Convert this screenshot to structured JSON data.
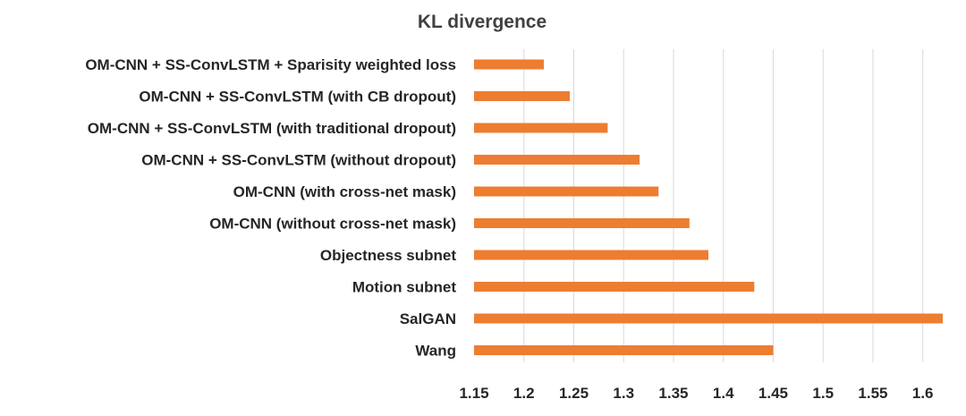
{
  "chart_data": {
    "type": "bar",
    "orientation": "horizontal",
    "title": "KL divergence",
    "xlabel": "",
    "ylabel": "",
    "xlim": [
      1.15,
      1.62
    ],
    "x_ticks": [
      1.15,
      1.2,
      1.25,
      1.3,
      1.35,
      1.4,
      1.45,
      1.5,
      1.55,
      1.6
    ],
    "x_tick_labels": [
      "1.15",
      "1.2",
      "1.25",
      "1.3",
      "1.35",
      "1.4",
      "1.45",
      "1.5",
      "1.55",
      "1.6"
    ],
    "grid": true,
    "legend": "none",
    "bar_color": "#ed7d31",
    "categories": [
      "OM-CNN + SS-ConvLSTM + Sparisity weighted loss",
      "OM-CNN + SS-ConvLSTM (with CB dropout)",
      "OM-CNN + SS-ConvLSTM (with traditional dropout)",
      "OM-CNN + SS-ConvLSTM (without dropout)",
      "OM-CNN (with cross-net mask)",
      "OM-CNN (without cross-net mask)",
      "Objectness subnet",
      "Motion subnet",
      "SalGAN",
      "Wang"
    ],
    "values": [
      1.22,
      1.246,
      1.284,
      1.316,
      1.335,
      1.366,
      1.385,
      1.431,
      1.62,
      1.45
    ]
  }
}
